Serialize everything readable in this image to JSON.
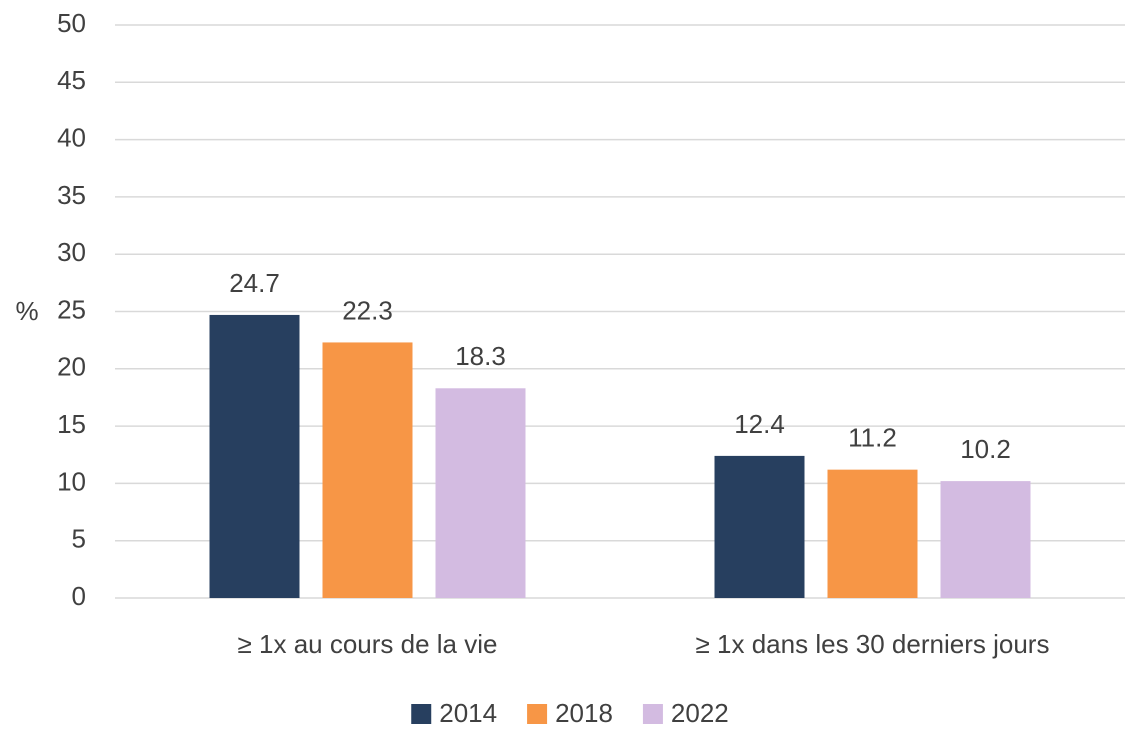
{
  "chart_data": {
    "type": "bar",
    "y_label": "%",
    "categories": [
      "≥ 1x au cours de la vie",
      "≥ 1x dans les 30 derniers jours"
    ],
    "series": [
      {
        "name": "2014",
        "color": "#273f5f",
        "values": [
          24.7,
          12.4
        ]
      },
      {
        "name": "2018",
        "color": "#f79646",
        "values": [
          22.3,
          11.2
        ]
      },
      {
        "name": "2022",
        "color": "#d3bbe1",
        "values": [
          18.3,
          10.2
        ]
      }
    ],
    "ylim": [
      0,
      50
    ],
    "yticks": [
      0,
      5,
      10,
      15,
      20,
      25,
      30,
      35,
      40,
      45,
      50
    ],
    "grid": true,
    "legend": "bottom"
  }
}
